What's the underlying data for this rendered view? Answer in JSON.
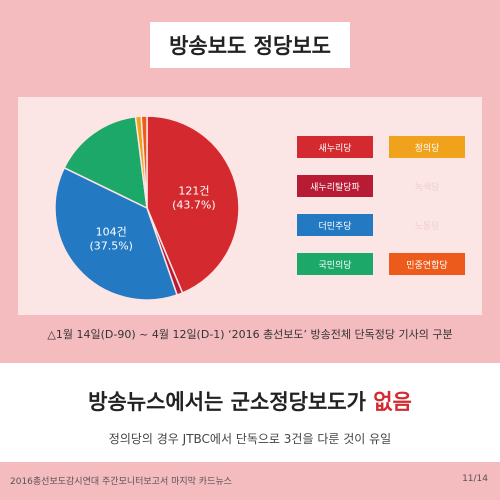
{
  "header": {
    "title": "방송보도 정당보도"
  },
  "chart_data": {
    "type": "pie",
    "slices": [
      {
        "label": "새누리당",
        "value": 43.7,
        "count_label": "121건",
        "pct_label": "(43.7%)",
        "color": "#d42a2f"
      },
      {
        "label": "새누리탈당파",
        "value": 1.0,
        "color": "#b81c35"
      },
      {
        "label": "더민주당",
        "value": 37.5,
        "count_label": "104건",
        "pct_label": "(37.5%)",
        "color": "#2479c3"
      },
      {
        "label": "국민의당",
        "value": 15.8,
        "color": "#1ca868"
      },
      {
        "label": "정의당",
        "value": 1.0,
        "color": "#f0a21c"
      },
      {
        "label": "민중연합당",
        "value": 1.0,
        "color": "#ec5b1b"
      }
    ],
    "legend": [
      {
        "label": "새누리당",
        "color": "#d42a2f"
      },
      {
        "label": "정의당",
        "color": "#f0a21c"
      },
      {
        "label": "새누리탈당파",
        "color": "#b81c35"
      },
      {
        "label": "녹색당",
        "color": "#fbe5e5"
      },
      {
        "label": "더민주당",
        "color": "#2479c3"
      },
      {
        "label": "노동당",
        "color": "#fbe5e5"
      },
      {
        "label": "국민의당",
        "color": "#1ca868"
      },
      {
        "label": "민중연합당",
        "color": "#ec5b1b"
      }
    ]
  },
  "caption": "△1월 14일(D-90) ~ 4월 12일(D-1) ‘2016 총선보도’ 방송전체 단독정당 기사의 구분",
  "headline": {
    "before": "방송뉴스에서는 군소정당보도가 ",
    "highlight": "없음"
  },
  "subline": "정의당의 경우 JTBC에서 단독으로 3건을 다룬 것이 유일",
  "footer": {
    "left": "2016총선보도감시연대 주간모니터보고서 마지막 카드뉴스",
    "right": "11/14"
  }
}
